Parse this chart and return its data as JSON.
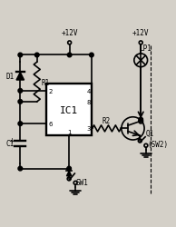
{
  "bg_color": "#d4d0c8",
  "line_color": "#000000",
  "lw": 1.2,
  "labels": {
    "ic1": "IC1",
    "r1": "R1",
    "r2": "R2",
    "d1": "D1",
    "c1": "C1",
    "q1": "Q1",
    "lp1": "LP1",
    "sw1": "SW1",
    "sw2": "(SW2)",
    "vplus_left": "+12V",
    "vplus_right": "+12V",
    "pin2": "2",
    "pin6": "6",
    "pin4": "4",
    "pin8": "8",
    "pin3": "3",
    "pin1": "1"
  }
}
